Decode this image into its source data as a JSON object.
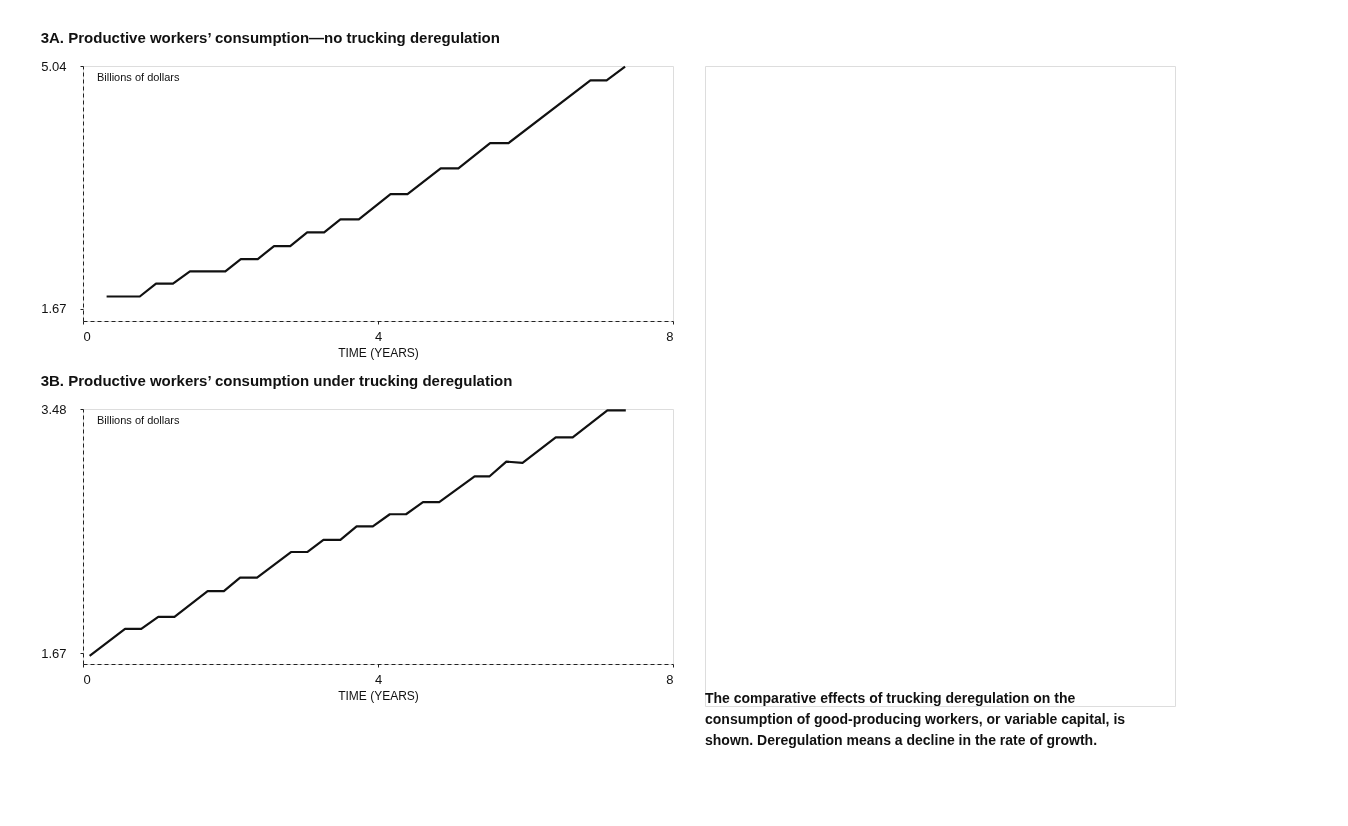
{
  "chart_data": [
    {
      "type": "line",
      "title": "3A. Productive workers’ consumption—no trucking deregulation",
      "xlabel": "TIME (YEARS)",
      "ylabel": "Billions of dollars",
      "xlim": [
        0,
        8
      ],
      "xticks": [
        0,
        4,
        8
      ],
      "ylim": [
        1.5,
        5.04
      ],
      "yticks": [
        1.67,
        5.04
      ],
      "grid": false,
      "line_style": "solid",
      "x": [
        0.32,
        0.77,
        0.99,
        1.22,
        1.45,
        1.93,
        2.14,
        2.37,
        2.59,
        2.81,
        3.04,
        3.27,
        3.49,
        3.74,
        4.17,
        4.4,
        4.85,
        5.09,
        5.52,
        5.77,
        6.88,
        7.1,
        7.35
      ],
      "series": [
        {
          "color": "#111111",
          "values": [
            1.84,
            1.84,
            2.02,
            2.02,
            2.19,
            2.19,
            2.36,
            2.36,
            2.54,
            2.54,
            2.73,
            2.73,
            2.91,
            2.91,
            3.26,
            3.26,
            3.62,
            3.62,
            3.97,
            3.97,
            4.84,
            4.84,
            5.03
          ]
        }
      ]
    },
    {
      "type": "line",
      "title": "3B. Productive workers’ consumption under trucking deregulation",
      "xlabel": "TIME (YEARS)",
      "ylabel": "Billions of dollars",
      "xlim": [
        0,
        8
      ],
      "xticks": [
        0,
        4,
        8
      ],
      "ylim": [
        1.59,
        3.48
      ],
      "yticks": [
        1.67,
        3.48
      ],
      "grid": false,
      "line_style": "solid",
      "annotations": [
        "The comparative effects of trucking deregulation on the consumption of good-producing workers, or variable capital, is shown. Deregulation means a decline in the rate of growth."
      ],
      "x": [
        0.09,
        0.57,
        0.79,
        1.02,
        1.24,
        1.69,
        1.91,
        2.13,
        2.36,
        2.82,
        3.04,
        3.26,
        3.49,
        3.71,
        3.93,
        4.16,
        4.38,
        4.61,
        4.83,
        5.31,
        5.51,
        5.74,
        5.96,
        6.41,
        6.64,
        7.11,
        7.36
      ],
      "series": [
        {
          "color": "#111111",
          "values": [
            1.65,
            1.85,
            1.85,
            1.94,
            1.94,
            2.13,
            2.13,
            2.23,
            2.23,
            2.42,
            2.42,
            2.51,
            2.51,
            2.61,
            2.61,
            2.7,
            2.7,
            2.79,
            2.79,
            2.98,
            2.98,
            3.09,
            3.08,
            3.27,
            3.27,
            3.47,
            3.47
          ]
        }
      ]
    }
  ]
}
